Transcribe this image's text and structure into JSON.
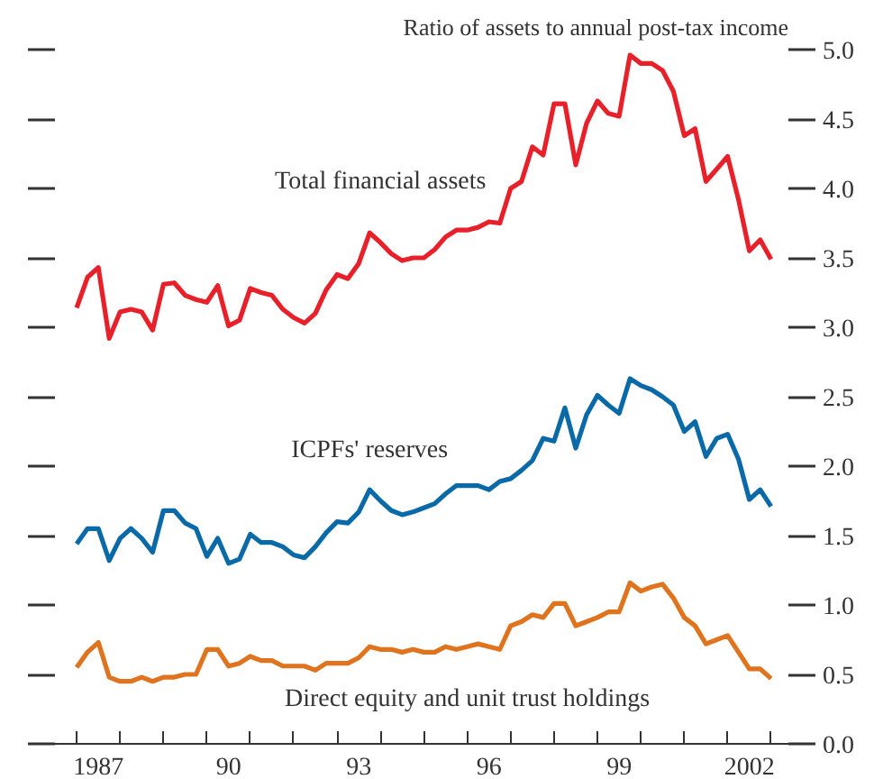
{
  "chart_data": {
    "type": "line",
    "title": "Ratio of assets to annual post-tax income",
    "x": [
      1986.5,
      1986.75,
      1987.0,
      1987.25,
      1987.5,
      1987.75,
      1988.0,
      1988.25,
      1988.5,
      1988.75,
      1989.0,
      1989.25,
      1989.5,
      1989.75,
      1990.0,
      1990.25,
      1990.5,
      1990.75,
      1991.0,
      1991.25,
      1991.5,
      1991.75,
      1992.0,
      1992.25,
      1992.5,
      1992.75,
      1993.0,
      1993.25,
      1993.5,
      1993.75,
      1994.0,
      1994.25,
      1994.5,
      1994.75,
      1995.0,
      1995.25,
      1995.5,
      1995.75,
      1996.0,
      1996.25,
      1996.5,
      1996.75,
      1997.0,
      1997.25,
      1997.5,
      1997.75,
      1998.0,
      1998.25,
      1998.5,
      1998.75,
      1999.0,
      1999.25,
      1999.5,
      1999.75,
      2000.0,
      2000.25,
      2000.5,
      2000.75,
      2001.0,
      2001.25,
      2001.5,
      2001.75,
      2002.0,
      2002.25,
      2002.5
    ],
    "series": [
      {
        "name": "Total financial assets",
        "color": "#e8202a",
        "values": [
          3.14,
          3.36,
          3.43,
          2.92,
          3.11,
          3.13,
          3.11,
          2.98,
          3.31,
          3.32,
          3.23,
          3.2,
          3.18,
          3.3,
          3.01,
          3.05,
          3.28,
          3.25,
          3.23,
          3.13,
          3.07,
          3.03,
          3.1,
          3.27,
          3.38,
          3.35,
          3.46,
          3.68,
          3.61,
          3.53,
          3.48,
          3.5,
          3.5,
          3.56,
          3.65,
          3.7,
          3.7,
          3.72,
          3.76,
          3.75,
          4.0,
          4.05,
          4.3,
          4.24,
          4.61,
          4.61,
          4.17,
          4.47,
          4.63,
          4.54,
          4.52,
          4.96,
          4.9,
          4.9,
          4.85,
          4.7,
          4.38,
          4.43,
          4.05,
          4.14,
          4.23,
          3.92,
          3.55,
          3.63,
          3.49
        ]
      },
      {
        "name": "ICPFs' reserves",
        "color": "#0a6aa8",
        "values": [
          1.44,
          1.55,
          1.55,
          1.32,
          1.48,
          1.55,
          1.48,
          1.38,
          1.68,
          1.68,
          1.59,
          1.55,
          1.35,
          1.48,
          1.3,
          1.33,
          1.51,
          1.45,
          1.45,
          1.42,
          1.36,
          1.34,
          1.42,
          1.52,
          1.6,
          1.59,
          1.67,
          1.83,
          1.75,
          1.68,
          1.65,
          1.67,
          1.7,
          1.73,
          1.8,
          1.86,
          1.86,
          1.86,
          1.83,
          1.89,
          1.91,
          1.97,
          2.04,
          2.2,
          2.18,
          2.42,
          2.13,
          2.37,
          2.51,
          2.44,
          2.38,
          2.63,
          2.58,
          2.55,
          2.5,
          2.44,
          2.25,
          2.32,
          2.07,
          2.2,
          2.23,
          2.05,
          1.76,
          1.83,
          1.71
        ]
      },
      {
        "name": "Direct equity and unit trust holdings",
        "color": "#e0731e",
        "values": [
          0.55,
          0.66,
          0.73,
          0.48,
          0.45,
          0.45,
          0.48,
          0.45,
          0.48,
          0.48,
          0.5,
          0.5,
          0.68,
          0.68,
          0.56,
          0.58,
          0.63,
          0.6,
          0.6,
          0.56,
          0.56,
          0.56,
          0.53,
          0.58,
          0.58,
          0.58,
          0.62,
          0.7,
          0.68,
          0.68,
          0.66,
          0.68,
          0.66,
          0.66,
          0.7,
          0.68,
          0.7,
          0.72,
          0.7,
          0.68,
          0.85,
          0.88,
          0.93,
          0.91,
          1.01,
          1.01,
          0.85,
          0.88,
          0.91,
          0.95,
          0.95,
          1.16,
          1.1,
          1.13,
          1.15,
          1.05,
          0.91,
          0.85,
          0.72,
          0.75,
          0.78,
          0.66,
          0.54,
          0.54,
          0.47
        ]
      }
    ],
    "xlim": [
      1986.0,
      2002.9
    ],
    "xticks": [
      {
        "value": 1986.5,
        "label": null
      },
      {
        "value": 1987.5,
        "label": null
      },
      {
        "value": 1988.5,
        "label": null
      },
      {
        "value": 1989.5,
        "label": null
      },
      {
        "value": 1990.5,
        "label": null
      },
      {
        "value": 1991.5,
        "label": null
      },
      {
        "value": 1992.5,
        "label": null
      },
      {
        "value": 1993.5,
        "label": null
      },
      {
        "value": 1994.5,
        "label": null
      },
      {
        "value": 1995.5,
        "label": null
      },
      {
        "value": 1996.5,
        "label": null
      },
      {
        "value": 1997.5,
        "label": null
      },
      {
        "value": 1998.5,
        "label": null
      },
      {
        "value": 1999.5,
        "label": null
      },
      {
        "value": 2000.5,
        "label": null
      },
      {
        "value": 2001.5,
        "label": null
      },
      {
        "value": 2002.5,
        "label": null
      },
      {
        "value": 1987,
        "label": "1987"
      },
      {
        "value": 1990,
        "label": "90"
      },
      {
        "value": 1993,
        "label": "93"
      },
      {
        "value": 1996,
        "label": "96"
      },
      {
        "value": 1999,
        "label": "99"
      },
      {
        "value": 2002,
        "label": "2002"
      }
    ],
    "ylim": [
      0,
      5
    ],
    "yticks": [
      {
        "value": 0,
        "label": "0.0"
      },
      {
        "value": 0.5,
        "label": "0.5"
      },
      {
        "value": 1,
        "label": "1.0"
      },
      {
        "value": 1.5,
        "label": "1.5"
      },
      {
        "value": 2,
        "label": "2.0"
      },
      {
        "value": 2.5,
        "label": "2.5"
      },
      {
        "value": 3,
        "label": "3.0"
      },
      {
        "value": 3.5,
        "label": "3.5"
      },
      {
        "value": 4,
        "label": "4.0"
      },
      {
        "value": 4.5,
        "label": "4.5"
      },
      {
        "value": 5,
        "label": "5.0"
      }
    ],
    "grid": false,
    "legend": false,
    "marker": "none",
    "line_style": "solid"
  }
}
